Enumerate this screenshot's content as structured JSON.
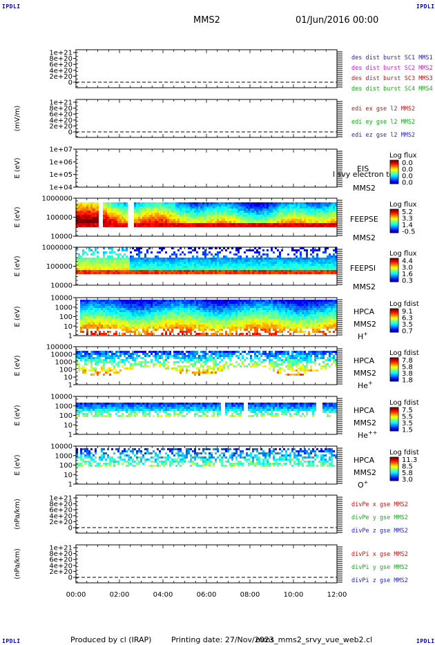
{
  "header": {
    "corner_label": "IPDLI",
    "spacecraft": "MMS2",
    "datetime": "01/Jun/2016 00:00"
  },
  "footer": {
    "produced_by": "Produced by cl (IRAP)",
    "printing_date": "Printing date: 27/Nov/2023",
    "script_name": "mms_mms2_srvy_vue_web2.cl"
  },
  "chart_data": {
    "type": "multi-panel time series (line + spectrogram)",
    "x_tick_labels": [
      "00:00",
      "02:00",
      "04:00",
      "06:00",
      "08:00",
      "10:00",
      "12:00"
    ],
    "x_range_hours": [
      0,
      12
    ],
    "panels": [
      {
        "id": "des-dist",
        "type": "line",
        "ylabel": "",
        "y_ticks": [
          "1e+21",
          "8e+20",
          "6e+20",
          "4e+20",
          "2e+20",
          "0"
        ],
        "ylim": [
          0,
          1e+21
        ],
        "baseline_dashed": true,
        "legend": [
          {
            "text": "des dist burst SC1 MMS1",
            "color": "#1f1fd0"
          },
          {
            "text": "des dist burst SC2 MMS2",
            "color": "#d020d0"
          },
          {
            "text": "des dist burst SC3 MMS3",
            "color": "#d01010"
          },
          {
            "text": "des dist burst SC4 MMS4",
            "color": "#10b010"
          }
        ],
        "note": "no data"
      },
      {
        "id": "edi",
        "type": "line",
        "ylabel": "(mV/m)",
        "y_ticks": [
          "1e+21",
          "8e+20",
          "6e+20",
          "4e+20",
          "2e+20",
          "0"
        ],
        "ylim": [
          0,
          1e+21
        ],
        "baseline_dashed": true,
        "legend": [
          {
            "text": "edi ex gse l2 MMS2",
            "color": "#d01010"
          },
          {
            "text": "edi ey gse l2 MMS2",
            "color": "#10b010"
          },
          {
            "text": "edi ez gse l2 MMS2",
            "color": "#1f1fd0"
          }
        ],
        "note": "no data"
      },
      {
        "id": "eis",
        "type": "heatmap",
        "ylabel": "E (eV)",
        "y_ticks": [
          "1e+07",
          "1e+06",
          "1e+05",
          "1e+04"
        ],
        "ylim": [
          10000.0,
          10000000.0
        ],
        "log_y": true,
        "labels": [
          "EIS",
          "MMS2"
        ],
        "overlay_text": "l svy electron to",
        "colorbar": {
          "title": "Log flux",
          "ticks": [
            "0.0",
            "0.0",
            "0.0",
            "0.0"
          ]
        },
        "note": "no data"
      },
      {
        "id": "feeps-e",
        "type": "heatmap",
        "ylabel": "E (eV)",
        "y_ticks": [
          "1000000",
          "100000",
          "10000"
        ],
        "ylim": [
          10000,
          1000000
        ],
        "log_y": true,
        "labels": [
          "FEEPSE",
          "MMS2"
        ],
        "colorbar": {
          "title": "Log flux",
          "ticks": [
            "5.2",
            "3.3",
            "1.4",
            "-0.5"
          ]
        }
      },
      {
        "id": "feeps-i",
        "type": "heatmap",
        "ylabel": "E (eV)",
        "y_ticks": [
          "1000000",
          "100000",
          "10000"
        ],
        "ylim": [
          10000,
          1000000
        ],
        "log_y": true,
        "labels": [
          "FEEPSI",
          "MMS2"
        ],
        "colorbar": {
          "title": "Log flux",
          "ticks": [
            "4.4",
            "3.0",
            "1.6",
            "0.3"
          ]
        }
      },
      {
        "id": "hpca-h",
        "type": "heatmap",
        "ylabel": "E (eV)",
        "y_ticks": [
          "10000",
          "1000",
          "100",
          "10",
          "1"
        ],
        "ylim": [
          1,
          30000
        ],
        "log_y": true,
        "labels": [
          "HPCA",
          "MMS2"
        ],
        "species": {
          "base": "H",
          "sup": "+"
        },
        "colorbar": {
          "title": "Log fdist",
          "ticks": [
            "9.1",
            "6.3",
            "3.5",
            "0.7"
          ]
        }
      },
      {
        "id": "hpca-he",
        "type": "heatmap",
        "ylabel": "E (eV)",
        "y_ticks": [
          "100000",
          "10000",
          "1000",
          "100",
          "10",
          "1"
        ],
        "ylim": [
          1,
          100000
        ],
        "log_y": true,
        "labels": [
          "HPCA",
          "MMS2"
        ],
        "species": {
          "base": "He",
          "sup": "+"
        },
        "colorbar": {
          "title": "Log fdist",
          "ticks": [
            "7.8",
            "5.8",
            "3.8",
            "1.8"
          ]
        }
      },
      {
        "id": "hpca-he2",
        "type": "heatmap",
        "ylabel": "E (eV)",
        "y_ticks": [
          "10000",
          "1000",
          "100",
          "10",
          "1"
        ],
        "ylim": [
          1,
          30000
        ],
        "log_y": true,
        "labels": [
          "HPCA",
          "MMS2"
        ],
        "species": {
          "base": "He",
          "sup": "++"
        },
        "colorbar": {
          "title": "Log fdist",
          "ticks": [
            "7.5",
            "5.5",
            "3.5",
            "1.5"
          ]
        }
      },
      {
        "id": "hpca-o",
        "type": "heatmap",
        "ylabel": "E (eV)",
        "y_ticks": [
          "10000",
          "1000",
          "100",
          "10",
          "1"
        ],
        "ylim": [
          1,
          30000
        ],
        "log_y": true,
        "labels": [
          "HPCA",
          "MMS2"
        ],
        "species": {
          "base": "O",
          "sup": "+"
        },
        "colorbar": {
          "title": "Log fdist",
          "ticks": [
            "11.3",
            "8.5",
            "5.8",
            "3.0"
          ]
        }
      },
      {
        "id": "divpe",
        "type": "line",
        "ylabel": "(nPa/km)",
        "y_ticks": [
          "1e+21",
          "8e+20",
          "6e+20",
          "4e+20",
          "2e+20",
          "0"
        ],
        "ylim": [
          0,
          1e+21
        ],
        "baseline_dashed": true,
        "legend": [
          {
            "text": "divPe x gse MMS2",
            "color": "#d01010"
          },
          {
            "text": "divPe y gse MMS2",
            "color": "#10b010"
          },
          {
            "text": "divPe z gse MMS2",
            "color": "#1f1fd0"
          }
        ],
        "note": "no data"
      },
      {
        "id": "divpi",
        "type": "line",
        "ylabel": "(nPa/km)",
        "y_ticks": [
          "1e+21",
          "8e+20",
          "6e+20",
          "4e+20",
          "2e+20",
          "0"
        ],
        "ylim": [
          0,
          1e+21
        ],
        "baseline_dashed": true,
        "legend": [
          {
            "text": "divPi x gse MMS2",
            "color": "#d01010"
          },
          {
            "text": "divPi y gse MMS2",
            "color": "#10b010"
          },
          {
            "text": "divPi z gse MMS2",
            "color": "#1f1fd0"
          }
        ],
        "note": "no data"
      }
    ]
  }
}
